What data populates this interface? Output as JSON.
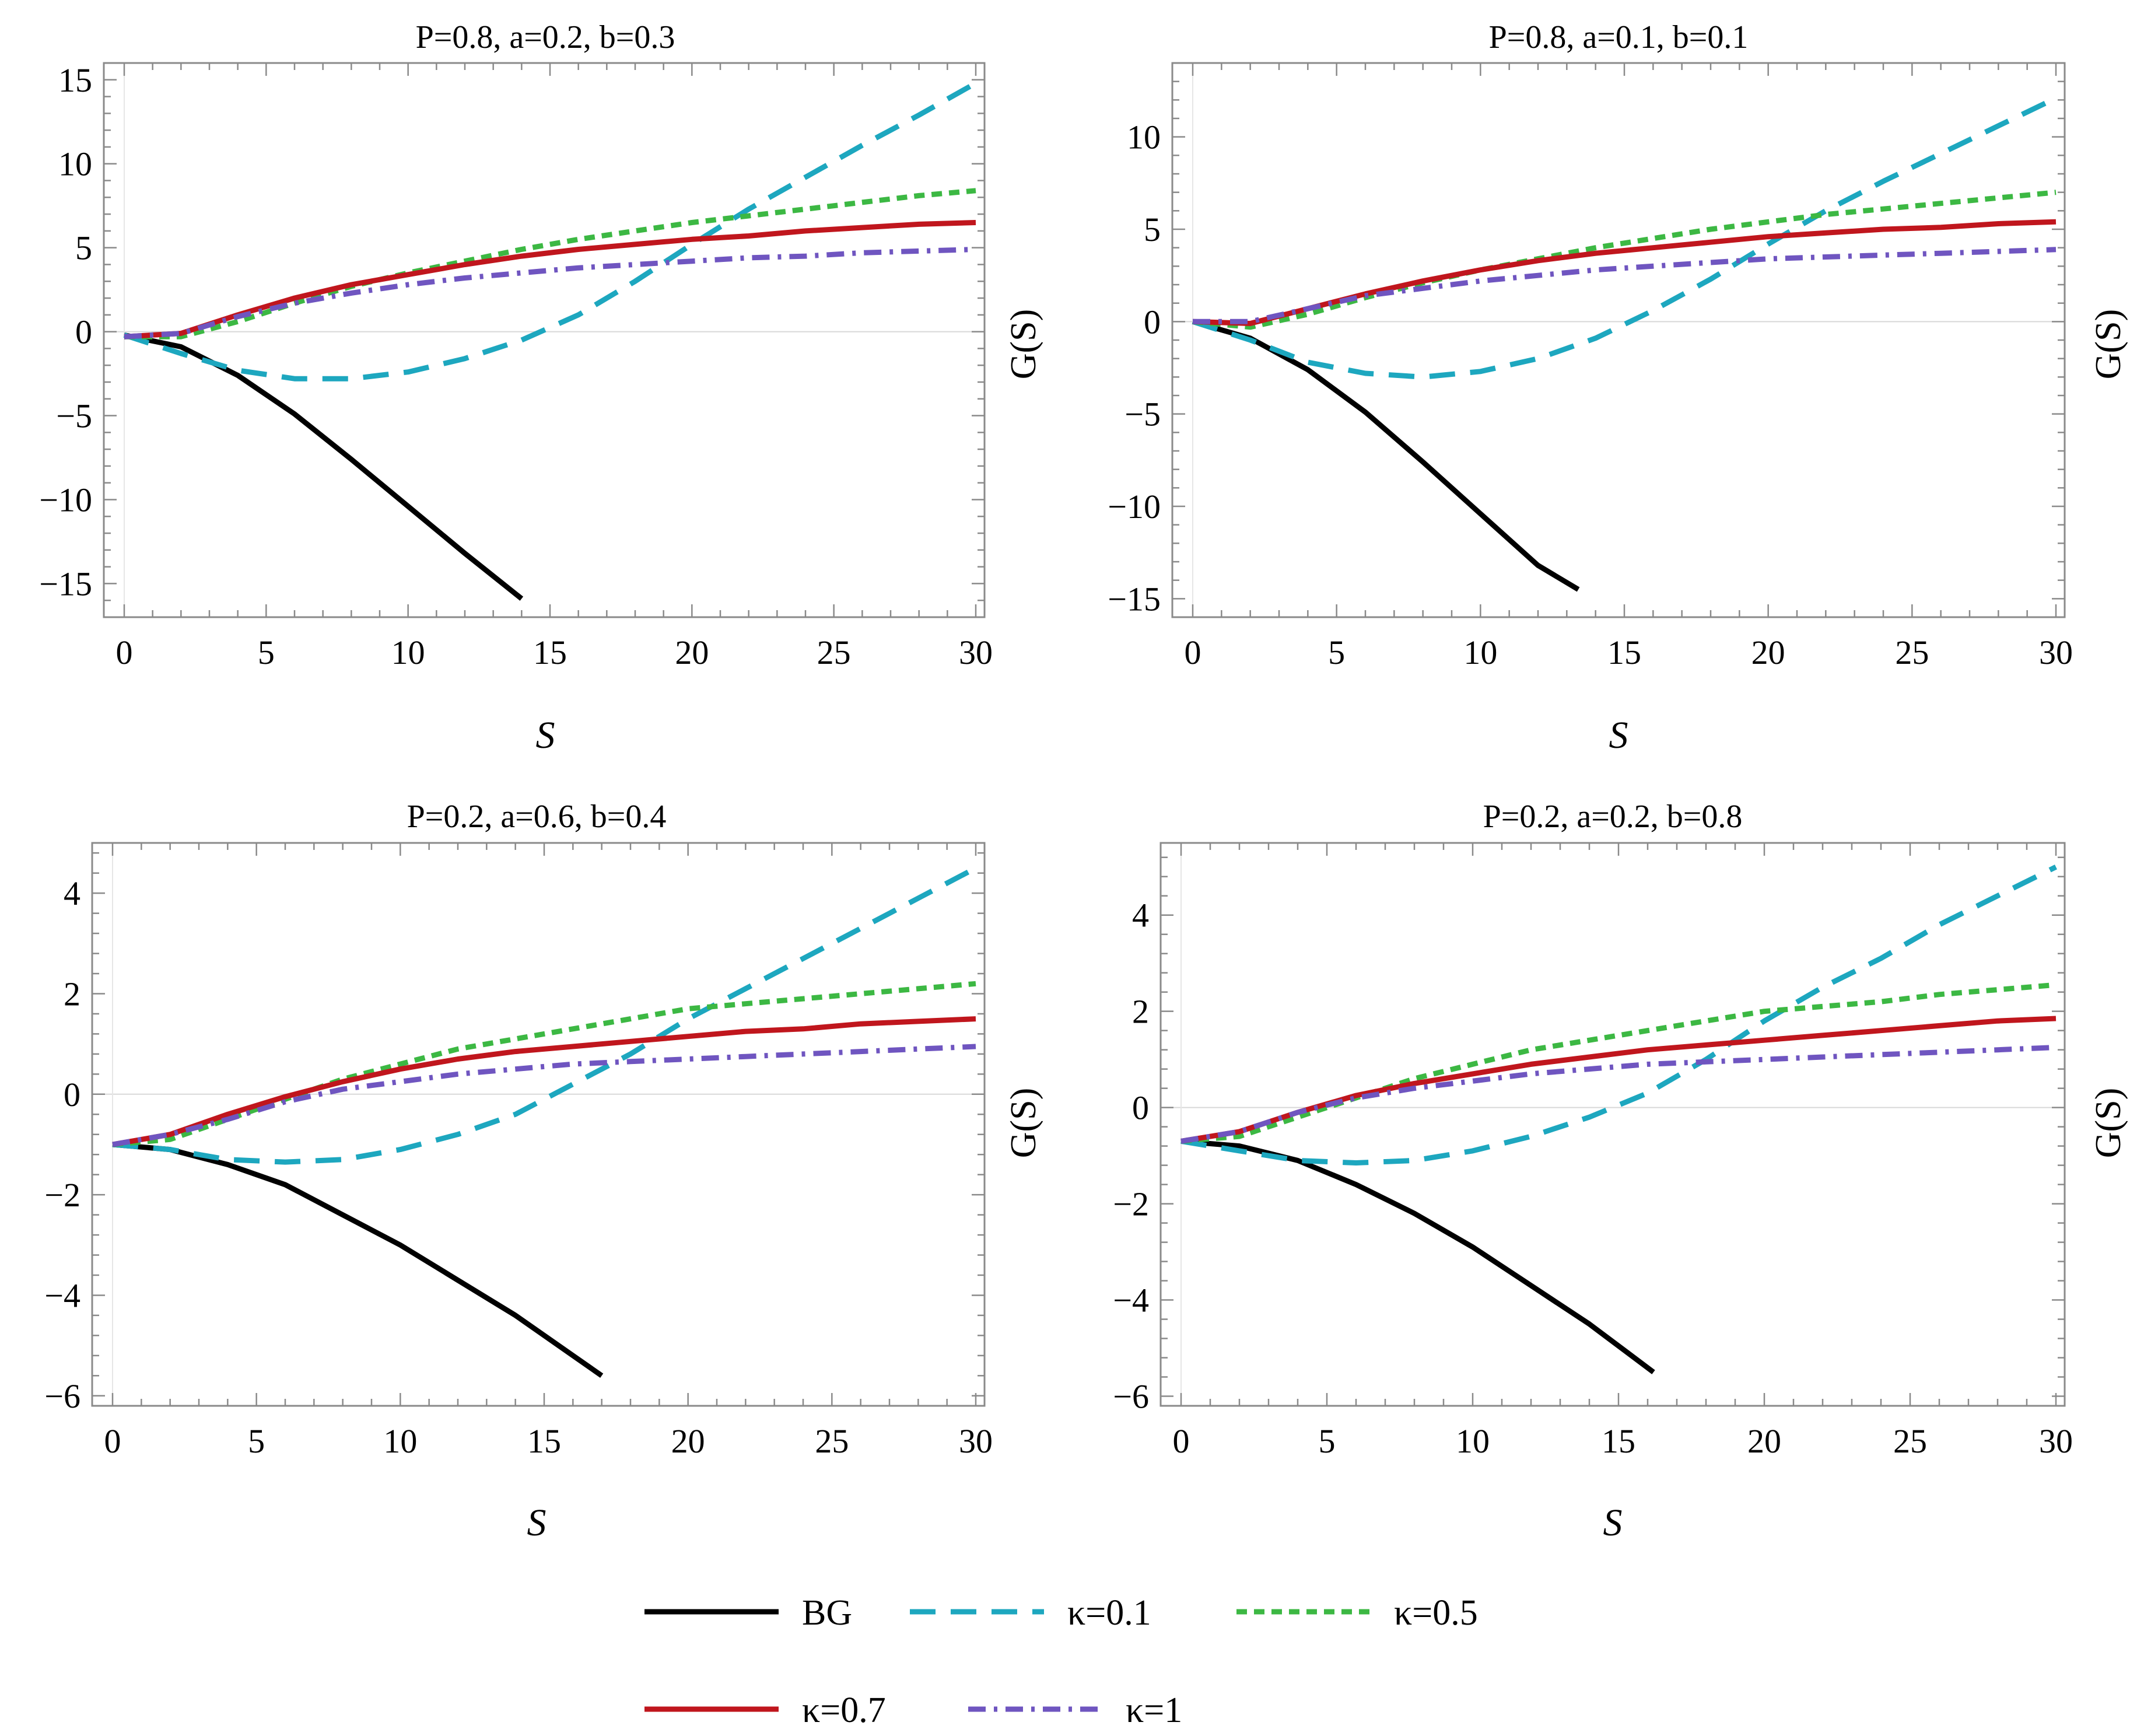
{
  "chart_data": [
    {
      "type": "line",
      "title": "P=0.8, a=0.2, b=0.3",
      "xlabel": "S",
      "ylabel": "",
      "xlim": [
        0,
        30
      ],
      "ylim": [
        -17,
        16
      ],
      "xticks": [
        0,
        5,
        10,
        15,
        20,
        25,
        30
      ],
      "yticks": [
        -15,
        -10,
        -5,
        0,
        5,
        10,
        15
      ],
      "xtick_labels": [
        "0",
        "5",
        "10",
        "15",
        "20",
        "25",
        "30"
      ],
      "ytick_labels": [
        "−15",
        "−10",
        "−5",
        "0",
        "5",
        "10",
        "15"
      ],
      "series": [
        {
          "name": "BG",
          "x": [
            0,
            2,
            4,
            6,
            8,
            10,
            12,
            14
          ],
          "y": [
            -0.2,
            -0.9,
            -2.6,
            -4.9,
            -7.6,
            -10.4,
            -13.2,
            -15.9
          ]
        },
        {
          "name": "κ=0.1",
          "x": [
            0,
            2,
            4,
            6,
            8,
            10,
            12,
            14,
            16,
            18,
            20,
            22,
            24,
            26,
            28,
            30
          ],
          "y": [
            -0.2,
            -1.3,
            -2.3,
            -2.8,
            -2.8,
            -2.4,
            -1.6,
            -0.5,
            1.0,
            3.0,
            5.2,
            7.3,
            9.2,
            11.1,
            12.9,
            14.8
          ]
        },
        {
          "name": "κ=0.5",
          "x": [
            0,
            2,
            4,
            6,
            8,
            10,
            12,
            14,
            16,
            18,
            20,
            22,
            24,
            26,
            28,
            30
          ],
          "y": [
            -0.3,
            -0.3,
            0.6,
            1.7,
            2.7,
            3.5,
            4.2,
            4.9,
            5.5,
            6.0,
            6.5,
            6.9,
            7.3,
            7.7,
            8.1,
            8.4
          ]
        },
        {
          "name": "κ=0.7",
          "x": [
            0,
            2,
            4,
            6,
            8,
            10,
            12,
            14,
            16,
            18,
            20,
            22,
            24,
            26,
            28,
            30
          ],
          "y": [
            -0.3,
            -0.1,
            1.0,
            2.0,
            2.8,
            3.4,
            4.0,
            4.5,
            4.9,
            5.2,
            5.5,
            5.7,
            6.0,
            6.2,
            6.4,
            6.5
          ]
        },
        {
          "name": "κ=1",
          "x": [
            0,
            2,
            4,
            6,
            8,
            10,
            12,
            14,
            16,
            18,
            20,
            22,
            24,
            26,
            28,
            30
          ],
          "y": [
            -0.3,
            -0.1,
            0.9,
            1.7,
            2.3,
            2.8,
            3.2,
            3.5,
            3.8,
            4.0,
            4.2,
            4.4,
            4.5,
            4.7,
            4.8,
            4.9
          ]
        }
      ]
    },
    {
      "type": "line",
      "title": "P=0.8, a=0.1, b=0.1",
      "xlabel": "S",
      "ylabel": "G(S)",
      "xlim": [
        0,
        30
      ],
      "ylim": [
        -16,
        14
      ],
      "xticks": [
        0,
        5,
        10,
        15,
        20,
        25,
        30
      ],
      "yticks": [
        -15,
        -10,
        -5,
        0,
        5,
        10
      ],
      "xtick_labels": [
        "0",
        "5",
        "10",
        "15",
        "20",
        "25",
        "30"
      ],
      "ytick_labels": [
        "−15",
        "−10",
        "−5",
        "0",
        "5",
        "10"
      ],
      "series": [
        {
          "name": "BG",
          "x": [
            0,
            2,
            4,
            6,
            8,
            10,
            12,
            13.4
          ],
          "y": [
            0.0,
            -0.9,
            -2.6,
            -4.9,
            -7.6,
            -10.4,
            -13.2,
            -14.5
          ]
        },
        {
          "name": "κ=0.1",
          "x": [
            0,
            2,
            4,
            6,
            8,
            10,
            12,
            14,
            16,
            18,
            20,
            22,
            24,
            26,
            28,
            30
          ],
          "y": [
            0.0,
            -1.0,
            -2.2,
            -2.8,
            -3.0,
            -2.7,
            -2.0,
            -0.9,
            0.6,
            2.3,
            4.2,
            6.0,
            7.6,
            9.1,
            10.6,
            12.1
          ]
        },
        {
          "name": "κ=0.5",
          "x": [
            0,
            2,
            4,
            6,
            8,
            10,
            12,
            14,
            16,
            18,
            20,
            22,
            24,
            26,
            28,
            30
          ],
          "y": [
            0.0,
            -0.3,
            0.4,
            1.3,
            2.1,
            2.8,
            3.4,
            4.0,
            4.5,
            5.0,
            5.4,
            5.8,
            6.1,
            6.4,
            6.7,
            7.0
          ]
        },
        {
          "name": "κ=0.7",
          "x": [
            0,
            2,
            4,
            6,
            8,
            10,
            12,
            14,
            16,
            18,
            20,
            22,
            24,
            26,
            28,
            30
          ],
          "y": [
            0.0,
            -0.1,
            0.7,
            1.5,
            2.2,
            2.8,
            3.3,
            3.7,
            4.0,
            4.3,
            4.6,
            4.8,
            5.0,
            5.1,
            5.3,
            5.4
          ]
        },
        {
          "name": "κ=1",
          "x": [
            0,
            2,
            4,
            6,
            8,
            10,
            12,
            14,
            16,
            18,
            20,
            22,
            24,
            26,
            28,
            30
          ],
          "y": [
            0.0,
            0.0,
            0.7,
            1.4,
            1.8,
            2.2,
            2.5,
            2.8,
            3.0,
            3.2,
            3.4,
            3.5,
            3.6,
            3.7,
            3.8,
            3.9
          ]
        }
      ]
    },
    {
      "type": "line",
      "title": "P=0.2, a=0.6, b=0.4",
      "xlabel": "S",
      "ylabel": "",
      "xlim": [
        0,
        30
      ],
      "ylim": [
        -6.2,
        5.0
      ],
      "xticks": [
        0,
        5,
        10,
        15,
        20,
        25,
        30
      ],
      "yticks": [
        -6,
        -4,
        -2,
        0,
        2,
        4
      ],
      "xtick_labels": [
        "0",
        "5",
        "10",
        "15",
        "20",
        "25",
        "30"
      ],
      "ytick_labels": [
        "−6",
        "−4",
        "−2",
        "0",
        "2",
        "4"
      ],
      "series": [
        {
          "name": "BG",
          "x": [
            0,
            2,
            4,
            6,
            8,
            10,
            12,
            14,
            16,
            17
          ],
          "y": [
            -1.0,
            -1.1,
            -1.4,
            -1.8,
            -2.4,
            -3.0,
            -3.7,
            -4.4,
            -5.2,
            -5.6
          ]
        },
        {
          "name": "κ=0.1",
          "x": [
            0,
            2,
            4,
            6,
            8,
            10,
            12,
            14,
            16,
            18,
            20,
            22,
            24,
            26,
            28,
            30
          ],
          "y": [
            -1.0,
            -1.1,
            -1.3,
            -1.35,
            -1.3,
            -1.1,
            -0.8,
            -0.4,
            0.2,
            0.8,
            1.5,
            2.1,
            2.7,
            3.3,
            3.9,
            4.5
          ]
        },
        {
          "name": "κ=0.5",
          "x": [
            0,
            2,
            4,
            6,
            8,
            10,
            12,
            14,
            16,
            18,
            20,
            22,
            24,
            26,
            28,
            30
          ],
          "y": [
            -1.0,
            -0.9,
            -0.5,
            -0.1,
            0.3,
            0.6,
            0.9,
            1.1,
            1.3,
            1.5,
            1.7,
            1.8,
            1.9,
            2.0,
            2.1,
            2.2
          ]
        },
        {
          "name": "κ=0.7",
          "x": [
            0,
            2,
            4,
            6,
            8,
            10,
            12,
            14,
            16,
            18,
            20,
            22,
            24,
            26,
            28,
            30
          ],
          "y": [
            -1.0,
            -0.8,
            -0.4,
            -0.05,
            0.25,
            0.5,
            0.7,
            0.85,
            0.95,
            1.05,
            1.15,
            1.25,
            1.3,
            1.4,
            1.45,
            1.5
          ]
        },
        {
          "name": "κ=1",
          "x": [
            0,
            2,
            4,
            6,
            8,
            10,
            12,
            14,
            16,
            18,
            20,
            22,
            24,
            26,
            28,
            30
          ],
          "y": [
            -1.0,
            -0.8,
            -0.5,
            -0.15,
            0.1,
            0.25,
            0.4,
            0.5,
            0.6,
            0.65,
            0.7,
            0.75,
            0.8,
            0.85,
            0.9,
            0.95
          ]
        }
      ]
    },
    {
      "type": "line",
      "title": "P=0.2, a=0.2, b=0.8",
      "xlabel": "S",
      "ylabel": "G(S)",
      "xlim": [
        0,
        30
      ],
      "ylim": [
        -6.2,
        5.5
      ],
      "xticks": [
        0,
        5,
        10,
        15,
        20,
        25,
        30
      ],
      "yticks": [
        -6,
        -4,
        -2,
        0,
        2,
        4
      ],
      "xtick_labels": [
        "0",
        "5",
        "10",
        "15",
        "20",
        "25",
        "30"
      ],
      "ytick_labels": [
        "−6",
        "−4",
        "−2",
        "0",
        "2",
        "4"
      ],
      "series": [
        {
          "name": "BG",
          "x": [
            0,
            2,
            4,
            6,
            8,
            10,
            12,
            14,
            16.2
          ],
          "y": [
            -0.7,
            -0.8,
            -1.1,
            -1.6,
            -2.2,
            -2.9,
            -3.7,
            -4.5,
            -5.5
          ]
        },
        {
          "name": "κ=0.1",
          "x": [
            0,
            2,
            4,
            6,
            8,
            10,
            12,
            14,
            16,
            18,
            20,
            22,
            24,
            26,
            28,
            30
          ],
          "y": [
            -0.7,
            -0.9,
            -1.1,
            -1.15,
            -1.1,
            -0.9,
            -0.6,
            -0.2,
            0.3,
            1.0,
            1.8,
            2.5,
            3.1,
            3.8,
            4.4,
            5.0
          ]
        },
        {
          "name": "κ=0.5",
          "x": [
            0,
            2,
            4,
            6,
            8,
            10,
            12,
            14,
            16,
            18,
            20,
            22,
            24,
            26,
            28,
            30
          ],
          "y": [
            -0.7,
            -0.6,
            -0.2,
            0.2,
            0.6,
            0.9,
            1.2,
            1.4,
            1.6,
            1.8,
            2.0,
            2.1,
            2.2,
            2.35,
            2.45,
            2.55
          ]
        },
        {
          "name": "κ=0.7",
          "x": [
            0,
            2,
            4,
            6,
            8,
            10,
            12,
            14,
            16,
            18,
            20,
            22,
            24,
            26,
            28,
            30
          ],
          "y": [
            -0.7,
            -0.5,
            -0.1,
            0.25,
            0.5,
            0.7,
            0.9,
            1.05,
            1.2,
            1.3,
            1.4,
            1.5,
            1.6,
            1.7,
            1.8,
            1.85
          ]
        },
        {
          "name": "κ=1",
          "x": [
            0,
            2,
            4,
            6,
            8,
            10,
            12,
            14,
            16,
            18,
            20,
            22,
            24,
            26,
            28,
            30
          ],
          "y": [
            -0.7,
            -0.5,
            -0.1,
            0.2,
            0.4,
            0.55,
            0.7,
            0.8,
            0.9,
            0.95,
            1.0,
            1.05,
            1.1,
            1.15,
            1.2,
            1.25
          ]
        }
      ]
    }
  ],
  "legend": {
    "items": [
      {
        "name": "BG",
        "label": "BG"
      },
      {
        "name": "κ=0.1",
        "label": "κ=0.1"
      },
      {
        "name": "κ=0.5",
        "label": "κ=0.5"
      },
      {
        "name": "κ=0.7",
        "label": "κ=0.7"
      },
      {
        "name": "κ=1",
        "label": "κ=1"
      }
    ]
  },
  "series_styles": {
    "BG": {
      "color": "#000000",
      "dash": "solid"
    },
    "κ=0.1": {
      "color": "#1da7bf",
      "dash": "long-dash"
    },
    "κ=0.5": {
      "color": "#3cb843",
      "dash": "short-dash"
    },
    "κ=0.7": {
      "color": "#c0161d",
      "dash": "solid"
    },
    "κ=1": {
      "color": "#6f55c0",
      "dash": "dash-dot"
    }
  }
}
